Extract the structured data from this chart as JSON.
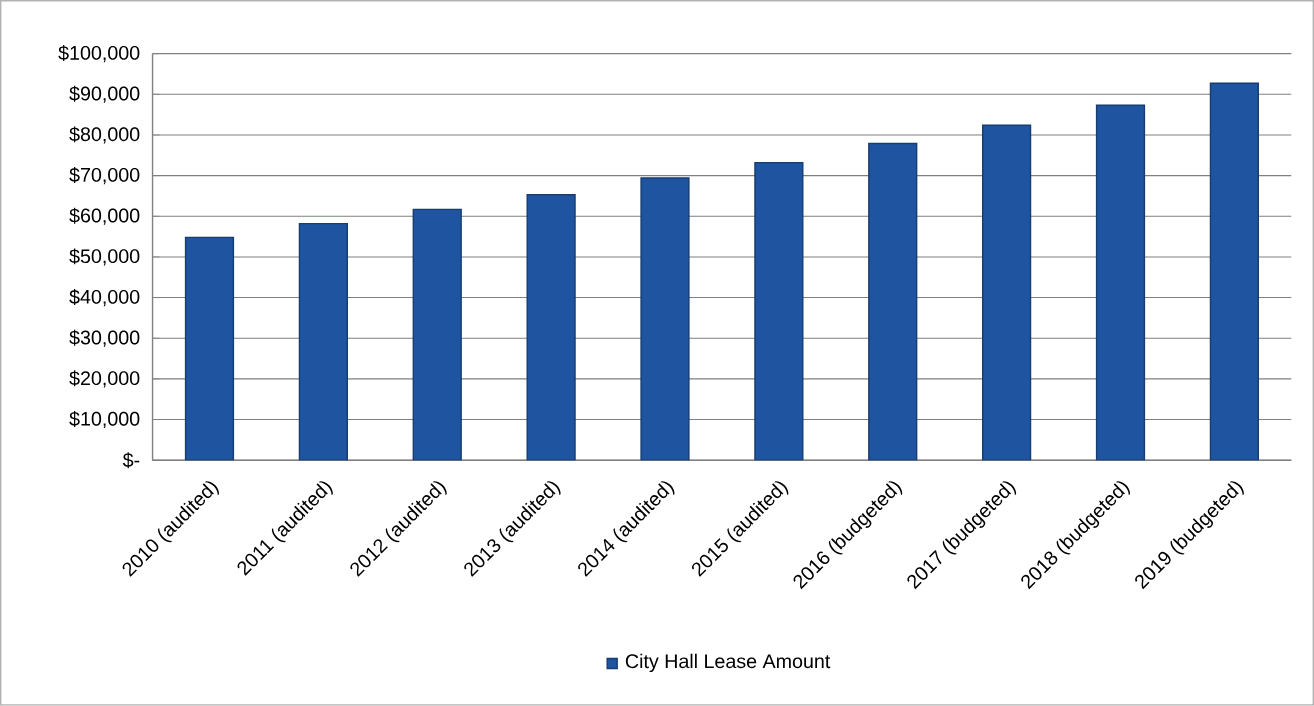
{
  "chart_data": {
    "type": "bar",
    "categories": [
      "2010 (audited)",
      "2011 (audited)",
      "2012 (audited)",
      "2013 (audited)",
      "2014 (audited)",
      "2015 (audited)",
      "2016 (budgeted)",
      "2017 (budgeted)",
      "2018 (budgeted)",
      "2019 (budgeted)"
    ],
    "series": [
      {
        "name": "City Hall Lease Amount",
        "color": "#1f55a0",
        "values": [
          54800,
          58200,
          61700,
          65300,
          69400,
          73200,
          77900,
          82400,
          87300,
          92700
        ]
      }
    ],
    "ylim": [
      0,
      100000
    ],
    "yticks": [
      {
        "value": 0,
        "label": "$-"
      },
      {
        "value": 10000,
        "label": "$10,000"
      },
      {
        "value": 20000,
        "label": "$20,000"
      },
      {
        "value": 30000,
        "label": "$30,000"
      },
      {
        "value": 40000,
        "label": "$40,000"
      },
      {
        "value": 50000,
        "label": "$50,000"
      },
      {
        "value": 60000,
        "label": "$60,000"
      },
      {
        "value": 70000,
        "label": "$70,000"
      },
      {
        "value": 80000,
        "label": "$80,000"
      },
      {
        "value": 90000,
        "label": "$90,000"
      },
      {
        "value": 100000,
        "label": "$100,000"
      }
    ],
    "grid": "y",
    "legend": "bottom"
  }
}
